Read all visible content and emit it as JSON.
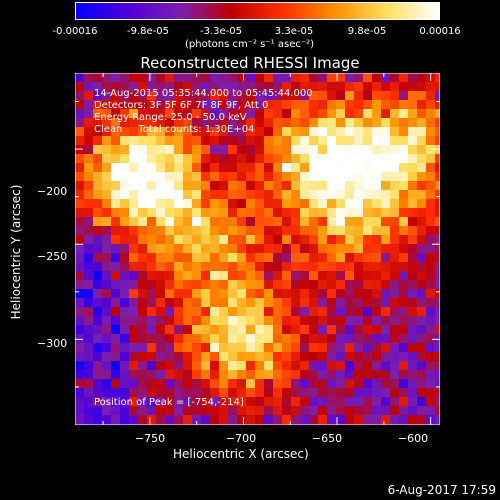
{
  "colorbar": {
    "ticks": [
      "-0.00016",
      "-9.8e-05",
      "-3.3e-05",
      "3.3e-05",
      "9.8e-05",
      "0.00016"
    ],
    "unit": "(photons cm⁻² s⁻¹ asec⁻²)",
    "colors": [
      "#0000ff",
      "#4f00d8",
      "#7a1fb0",
      "#c00000",
      "#ff3000",
      "#ff9000",
      "#ffe060",
      "#ffffff"
    ]
  },
  "chart_data": {
    "type": "heatmap",
    "title": "Reconstructed RHESSI Image",
    "xlabel": "Heliocentric X (arcsec)",
    "ylabel": "Heliocentric Y (arcsec)",
    "xlim": [
      -790,
      -595
    ],
    "ylim": [
      -345,
      -160
    ],
    "xticks": [
      -750,
      -700,
      -650,
      -600
    ],
    "yticks": [
      -200,
      -250,
      -300
    ],
    "xtick_labels": [
      "−750",
      "−700",
      "−650",
      "−600"
    ],
    "ytick_labels": [
      "−200",
      "−250",
      "−300"
    ],
    "peak": [
      -754,
      -214
    ],
    "bright_regions": [
      {
        "x": -754,
        "y": -214,
        "level": 1.0
      },
      {
        "x": -660,
        "y": -205,
        "level": 0.8
      },
      {
        "x": -615,
        "y": -200,
        "level": 0.7
      },
      {
        "x": -700,
        "y": -300,
        "level": 0.75
      },
      {
        "x": -720,
        "y": -250,
        "level": 0.55
      },
      {
        "x": -640,
        "y": -240,
        "level": 0.5
      }
    ]
  },
  "info": {
    "line1": "14-Aug-2015 05:35:44.000 to 05:45:44.000",
    "line2": "Detectors: 3F 5F 6F 7F 8F 9F, Att 0",
    "line3": "Energy Range: 25.0 - 50.0 keV",
    "line4": "Clean     Total counts: 1.30E+04",
    "peak_text": "Position of Peak = [-754,-214]"
  },
  "footer": "6-Aug-2017 17:59"
}
